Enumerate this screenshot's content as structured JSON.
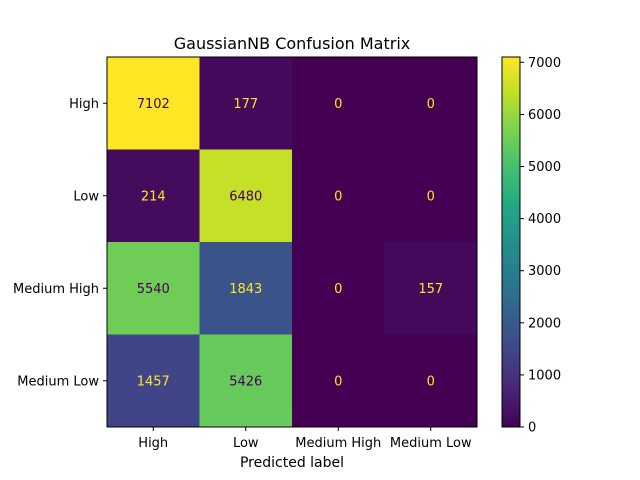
{
  "chart_data": {
    "type": "heatmap",
    "title": "GaussianNB Confusion Matrix",
    "xlabel": "Predicted label",
    "ylabel": "",
    "x_categories": [
      "High",
      "Low",
      "Medium High",
      "Medium Low"
    ],
    "y_categories": [
      "High",
      "Low",
      "Medium High",
      "Medium Low"
    ],
    "values": [
      [
        7102,
        177,
        0,
        0
      ],
      [
        214,
        6480,
        0,
        0
      ],
      [
        5540,
        1843,
        0,
        157
      ],
      [
        1457,
        5426,
        0,
        0
      ]
    ],
    "colorbar": {
      "min": 0,
      "max": 7102,
      "ticks": [
        0,
        1000,
        2000,
        3000,
        4000,
        5000,
        6000,
        7000
      ],
      "colormap": "viridis"
    }
  }
}
